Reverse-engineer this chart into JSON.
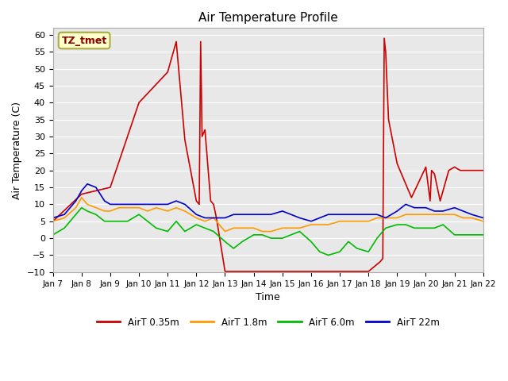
{
  "title": "Air Temperature Profile",
  "xlabel": "Time",
  "ylabel": "Air Temperature (C)",
  "ylim": [
    -10,
    62
  ],
  "yticks": [
    -10,
    -5,
    0,
    5,
    10,
    15,
    20,
    25,
    30,
    35,
    40,
    45,
    50,
    55,
    60
  ],
  "xtick_labels": [
    "Jan 7",
    "Jan 8",
    "Jan 9",
    "Jan 10",
    "Jan 11",
    "Jan 12",
    "Jan 13",
    "Jan 14",
    "Jan 15",
    "Jan 16",
    "Jan 17",
    "Jan 18",
    "Jan 19",
    "Jan 20",
    "Jan 21",
    "Jan 22"
  ],
  "annotation_text": "TZ_tmet",
  "annotation_color": "#8B0000",
  "annotation_bg": "#FFFFCC",
  "plot_bg": "#E8E8E8",
  "grid_color": "#FFFFFF",
  "colors": {
    "red": "#CC0000",
    "orange": "#FF9900",
    "green": "#00BB00",
    "blue": "#0000CC"
  },
  "legend_labels": [
    "AirT 0.35m",
    "AirT 1.8m",
    "AirT 6.0m",
    "AirT 22m"
  ],
  "red_x": [
    0,
    1,
    2,
    3,
    4,
    4.3,
    4.6,
    5.0,
    5.1,
    5.15,
    5.2,
    5.3,
    5.5,
    5.6,
    5.7,
    6.0,
    6.1,
    6.15,
    6.2,
    6.3,
    6.4,
    6.5,
    6.6,
    6.65,
    6.7,
    7.0,
    7.3,
    7.6,
    7.9,
    8.0,
    8.5,
    9.0,
    9.5,
    10.0,
    10.5,
    11.0,
    11.4,
    11.5,
    11.55,
    11.6,
    11.7,
    12.0,
    12.5,
    13.0,
    13.15,
    13.2,
    13.3,
    13.5,
    13.8,
    14.0,
    14.2,
    14.5,
    14.8,
    15.0
  ],
  "red_y": [
    5,
    13,
    15,
    40,
    49,
    58,
    29,
    11,
    10,
    58,
    30,
    32,
    11,
    10,
    6,
    -9.8,
    -9.8,
    -9.8,
    -9.8,
    -9.8,
    -9.8,
    -9.8,
    -9.8,
    -9.8,
    -9.8,
    -9.8,
    -9.8,
    -9.8,
    -9.8,
    -9.8,
    -9.8,
    -9.8,
    -9.8,
    -9.8,
    -9.8,
    -9.8,
    -7,
    -6,
    59,
    55,
    35,
    22,
    12,
    21,
    11,
    20,
    19,
    11,
    20,
    21,
    20,
    20,
    20,
    20
  ],
  "orange_x": [
    0,
    0.4,
    0.8,
    1.0,
    1.2,
    1.5,
    1.8,
    2.0,
    2.3,
    2.6,
    3.0,
    3.3,
    3.6,
    4.0,
    4.3,
    4.6,
    5.0,
    5.3,
    5.6,
    6.0,
    6.3,
    6.6,
    7.0,
    7.3,
    7.6,
    8.0,
    8.3,
    8.6,
    9.0,
    9.3,
    9.6,
    10.0,
    10.3,
    10.6,
    11.0,
    11.3,
    11.6,
    12.0,
    12.3,
    12.6,
    13.0,
    13.3,
    13.6,
    14.0,
    14.3,
    14.6,
    15.0
  ],
  "orange_y": [
    5,
    6,
    9,
    12,
    10,
    9,
    8,
    8,
    9,
    9,
    9,
    8,
    9,
    8,
    9,
    8,
    6,
    5,
    6,
    2,
    3,
    3,
    3,
    2,
    2,
    3,
    3,
    3,
    4,
    4,
    4,
    5,
    5,
    5,
    5,
    6,
    6,
    6,
    7,
    7,
    7,
    7,
    7,
    7,
    6,
    6,
    5
  ],
  "green_x": [
    0,
    0.4,
    0.8,
    1.0,
    1.2,
    1.5,
    1.8,
    2.0,
    2.3,
    2.6,
    3.0,
    3.3,
    3.6,
    4.0,
    4.3,
    4.6,
    5.0,
    5.3,
    5.6,
    6.0,
    6.3,
    6.6,
    7.0,
    7.3,
    7.6,
    8.0,
    8.3,
    8.6,
    9.0,
    9.3,
    9.6,
    10.0,
    10.3,
    10.6,
    11.0,
    11.3,
    11.6,
    12.0,
    12.3,
    12.6,
    13.0,
    13.3,
    13.6,
    14.0,
    14.3,
    14.6,
    15.0
  ],
  "green_y": [
    1,
    3,
    7,
    9,
    8,
    7,
    5,
    5,
    5,
    5,
    7,
    5,
    3,
    2,
    5,
    2,
    4,
    3,
    2,
    -1,
    -3,
    -1,
    1,
    1,
    0,
    0,
    1,
    2,
    -1,
    -4,
    -5,
    -4,
    -1,
    -3,
    -4,
    0,
    3,
    4,
    4,
    3,
    3,
    3,
    4,
    1,
    1,
    1,
    1
  ],
  "blue_x": [
    0,
    0.4,
    0.8,
    1.0,
    1.2,
    1.5,
    1.8,
    2.0,
    2.3,
    2.6,
    3.0,
    3.3,
    3.6,
    4.0,
    4.3,
    4.6,
    5.0,
    5.3,
    5.6,
    6.0,
    6.3,
    6.6,
    7.0,
    7.3,
    7.6,
    8.0,
    8.3,
    8.6,
    9.0,
    9.3,
    9.6,
    10.0,
    10.3,
    10.6,
    11.0,
    11.3,
    11.6,
    12.0,
    12.3,
    12.6,
    13.0,
    13.3,
    13.6,
    14.0,
    14.3,
    14.6,
    15.0
  ],
  "blue_y": [
    6,
    7,
    11,
    14,
    16,
    15,
    11,
    10,
    10,
    10,
    10,
    10,
    10,
    10,
    11,
    10,
    7,
    6,
    6,
    6,
    7,
    7,
    7,
    7,
    7,
    8,
    7,
    6,
    5,
    6,
    7,
    7,
    7,
    7,
    7,
    7,
    6,
    8,
    10,
    9,
    9,
    8,
    8,
    9,
    8,
    7,
    6
  ]
}
